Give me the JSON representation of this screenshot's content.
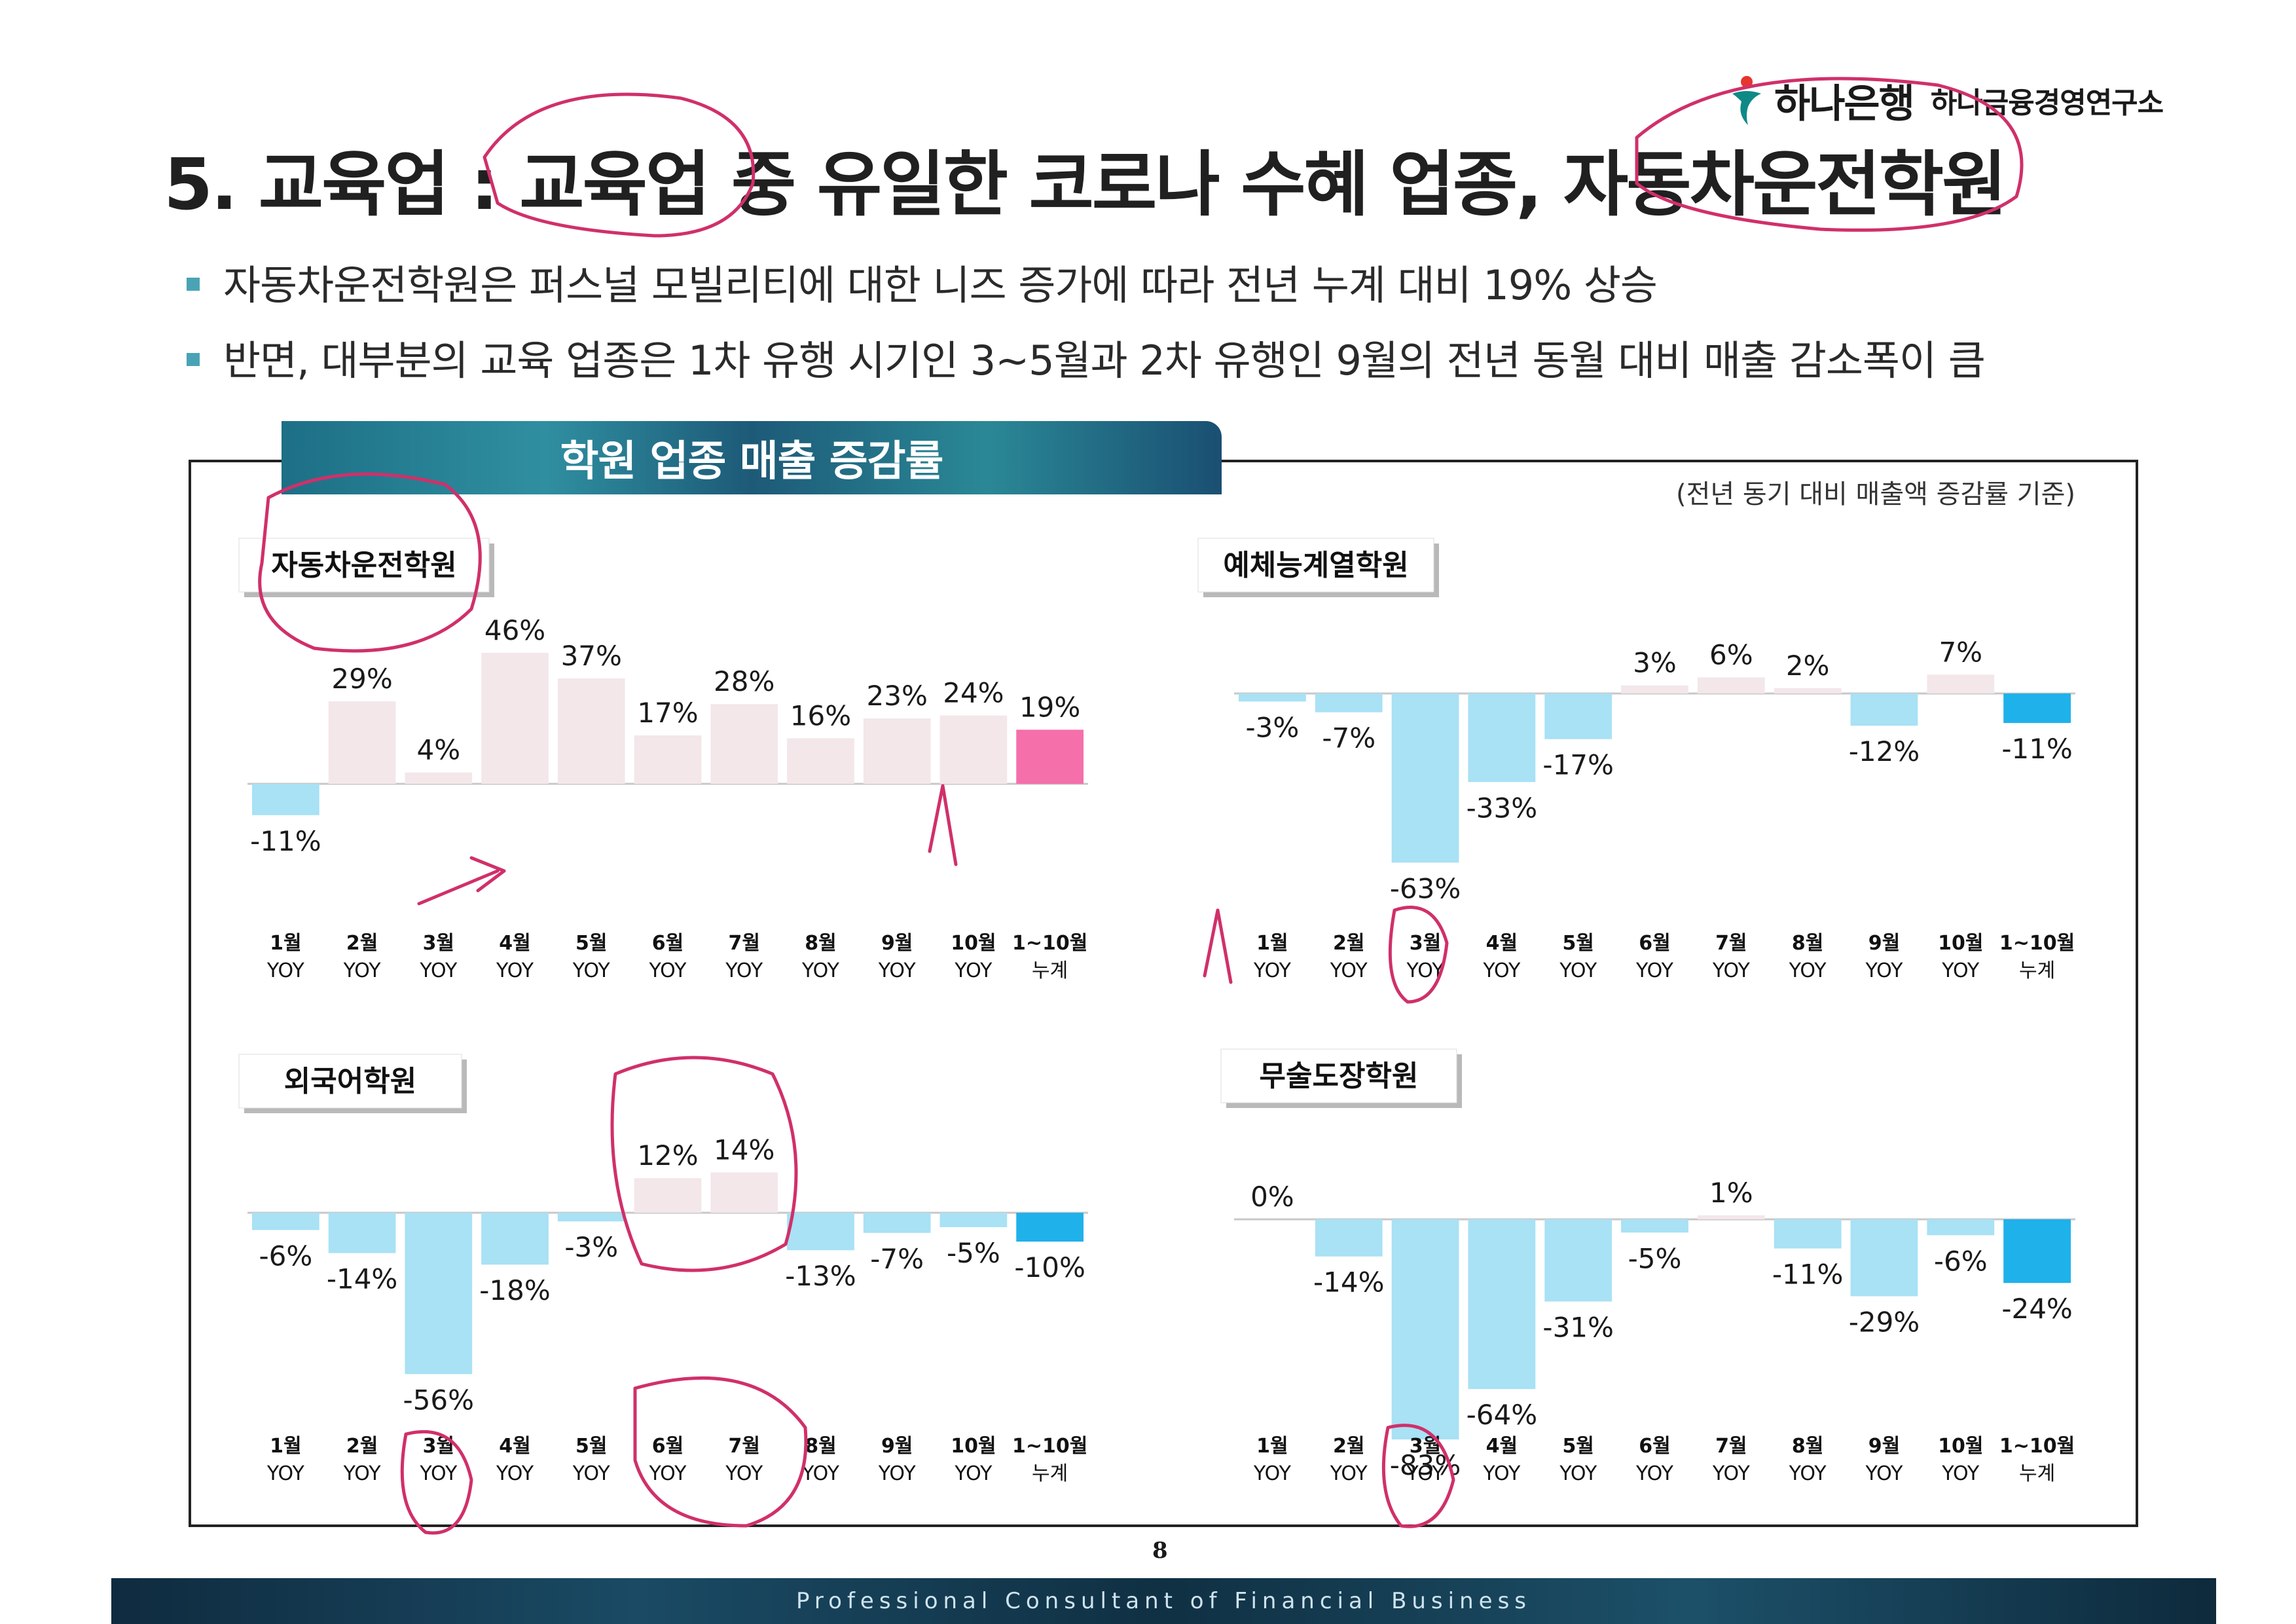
{
  "header": {
    "brand": "하나은행",
    "institute": "하나금융경영연구소",
    "title": "5. 교육업 : 교육업 중 유일한 코로나 수혜 업종, 자동차운전학원"
  },
  "bullets": [
    "자동차운전학원은 퍼스널 모빌리티에 대한 니즈 증가에 따라 전년 누계 대비 19% 상승",
    "반면, 대부분의 교육 업종은 1차 유행 시기인 3~5월과 2차 유행인 9월의 전년 동월 대비 매출 감소폭이 큼"
  ],
  "section": {
    "banner": "학원 업종 매출 증감률",
    "note": "(전년 동기 대비 매출액 증감률 기준)"
  },
  "colors": {
    "positive": "#f3e7ea",
    "negative": "#a9e1f5",
    "highlight_pos": "#f56faa",
    "highlight_neg": "#1fb1ea",
    "annotation": "#d0306a"
  },
  "chart_data": [
    {
      "type": "bar",
      "title": "자동차운전학원",
      "categories": [
        [
          "1월",
          "YOY"
        ],
        [
          "2월",
          "YOY"
        ],
        [
          "3월",
          "YOY"
        ],
        [
          "4월",
          "YOY"
        ],
        [
          "5월",
          "YOY"
        ],
        [
          "6월",
          "YOY"
        ],
        [
          "7월",
          "YOY"
        ],
        [
          "8월",
          "YOY"
        ],
        [
          "9월",
          "YOY"
        ],
        [
          "10월",
          "YOY"
        ],
        [
          "1~10월",
          "누계"
        ]
      ],
      "values": [
        -11,
        29,
        4,
        46,
        37,
        17,
        28,
        16,
        23,
        24,
        19
      ],
      "labels": [
        "-11%",
        "29%",
        "4%",
        "46%",
        "37%",
        "17%",
        "28%",
        "16%",
        "23%",
        "24%",
        "19%"
      ],
      "unit": "%"
    },
    {
      "type": "bar",
      "title": "예체능계열학원",
      "categories": [
        [
          "1월",
          "YOY"
        ],
        [
          "2월",
          "YOY"
        ],
        [
          "3월",
          "YOY"
        ],
        [
          "4월",
          "YOY"
        ],
        [
          "5월",
          "YOY"
        ],
        [
          "6월",
          "YOY"
        ],
        [
          "7월",
          "YOY"
        ],
        [
          "8월",
          "YOY"
        ],
        [
          "9월",
          "YOY"
        ],
        [
          "10월",
          "YOY"
        ],
        [
          "1~10월",
          "누계"
        ]
      ],
      "values": [
        -3,
        -7,
        -63,
        -33,
        -17,
        3,
        6,
        2,
        -12,
        7,
        -11
      ],
      "labels": [
        "-3%",
        "-7%",
        "-63%",
        "-33%",
        "-17%",
        "3%",
        "6%",
        "2%",
        "-12%",
        "7%",
        "-11%"
      ],
      "unit": "%"
    },
    {
      "type": "bar",
      "title": "외국어학원",
      "categories": [
        [
          "1월",
          "YOY"
        ],
        [
          "2월",
          "YOY"
        ],
        [
          "3월",
          "YOY"
        ],
        [
          "4월",
          "YOY"
        ],
        [
          "5월",
          "YOY"
        ],
        [
          "6월",
          "YOY"
        ],
        [
          "7월",
          "YOY"
        ],
        [
          "8월",
          "YOY"
        ],
        [
          "9월",
          "YOY"
        ],
        [
          "10월",
          "YOY"
        ],
        [
          "1~10월",
          "누계"
        ]
      ],
      "values": [
        -6,
        -14,
        -56,
        -18,
        -3,
        12,
        14,
        -13,
        -7,
        -5,
        -10
      ],
      "labels": [
        "-6%",
        "-14%",
        "-56%",
        "-18%",
        "-3%",
        "12%",
        "14%",
        "-13%",
        "-7%",
        "-5%",
        "-10%"
      ],
      "unit": "%"
    },
    {
      "type": "bar",
      "title": "무술도장학원",
      "categories": [
        [
          "1월",
          "YOY"
        ],
        [
          "2월",
          "YOY"
        ],
        [
          "3월",
          "YOY"
        ],
        [
          "4월",
          "YOY"
        ],
        [
          "5월",
          "YOY"
        ],
        [
          "6월",
          "YOY"
        ],
        [
          "7월",
          "YOY"
        ],
        [
          "8월",
          "YOY"
        ],
        [
          "9월",
          "YOY"
        ],
        [
          "10월",
          "YOY"
        ],
        [
          "1~10월",
          "누계"
        ]
      ],
      "values": [
        0,
        -14,
        -83,
        -64,
        -31,
        -5,
        1,
        -11,
        -29,
        -6,
        -24
      ],
      "labels": [
        "0%",
        "-14%",
        "-83%",
        "-64%",
        "-31%",
        "-5%",
        "1%",
        "-11%",
        "-29%",
        "-6%",
        "-24%"
      ],
      "unit": "%"
    }
  ],
  "footer": {
    "page": "8",
    "tagline": "Professional Consultant of Financial Business"
  }
}
